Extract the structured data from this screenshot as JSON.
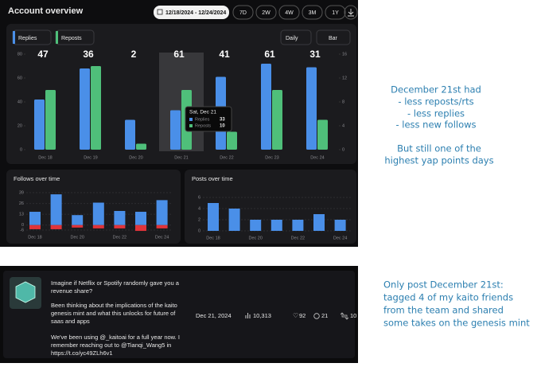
{
  "header": {
    "title": "Account overview",
    "date_range": "12/18/2024 - 12/24/2024",
    "periods": [
      "7D",
      "2W",
      "4W",
      "3M",
      "1Y"
    ]
  },
  "main_chart": {
    "type": "bar",
    "filters": [
      "Replies",
      "Reposts"
    ],
    "interval": "Daily",
    "chart_kind": "Bar",
    "categories": [
      "Dec 18",
      "Dec 19",
      "Dec 20",
      "Dec 21",
      "Dec 22",
      "Dec 23",
      "Dec 24"
    ],
    "series": [
      {
        "name": "Replies",
        "color": "#4a8fe8",
        "values": [
          42,
          68,
          25,
          33,
          61,
          72,
          69
        ]
      },
      {
        "name": "Reposts",
        "color": "#4fbf7a",
        "values": [
          10,
          14,
          1,
          10,
          3,
          10,
          5
        ],
        "axis": "y2"
      }
    ],
    "ylim": [
      0,
      80
    ],
    "yticks": [
      0,
      20,
      40,
      60,
      80
    ],
    "y2lim": [
      0,
      16
    ],
    "y2ticks": [
      0,
      4,
      8,
      12,
      16
    ],
    "tooltip": {
      "title": "Sat, Dec 21",
      "rows": [
        {
          "name": "Replies",
          "value": 33
        },
        {
          "name": "Reposts",
          "value": 10
        }
      ]
    },
    "yap_points": [
      47,
      36,
      2,
      61,
      41,
      61,
      31
    ]
  },
  "follows_chart": {
    "type": "bar",
    "title": "Follows over time",
    "categories": [
      "Dec 18",
      null,
      "Dec 20",
      null,
      "Dec 22",
      null,
      "Dec 24"
    ],
    "series": [
      {
        "color": "#4a8fe8",
        "values": [
          16,
          37,
          12,
          27,
          17,
          16,
          30
        ]
      },
      {
        "color": "#e0343a",
        "values": [
          -5,
          -5,
          -3,
          -4,
          -4,
          -7,
          -4
        ]
      }
    ],
    "ylim": [
      -6,
      39
    ],
    "yticks": [
      -6,
      0,
      13,
      26,
      39
    ]
  },
  "posts_chart": {
    "type": "bar",
    "title": "Posts over time",
    "categories": [
      "Dec 18",
      null,
      "Dec 20",
      null,
      "Dec 22",
      null,
      "Dec 24"
    ],
    "values": [
      5,
      4,
      2,
      2,
      2,
      3,
      2
    ],
    "color": "#4a8fe8",
    "ylim": [
      0,
      6
    ],
    "yticks": [
      0,
      2,
      4,
      6
    ]
  },
  "post": {
    "lines": [
      "Imagine if Netflix or Spotify randomly gave you a",
      "revenue share?",
      "Been thinking about the implications of the kaito",
      "genesis mint and what this unlocks for future of",
      "saas and apps",
      "We've been using @_kaitoai for a full year now. I",
      "remember reaching out to @Tianqi_Wang5 in",
      "https://t.co/yc49ZLh6v1"
    ],
    "date": "Dec 21, 2024",
    "views": "10,313",
    "likes": "92",
    "replies": "21",
    "reposts": "10"
  },
  "notes": {
    "first": [
      "December 21st had",
      "- less reposts/rts",
      "- less replies",
      "- less new follows",
      "But still one of the",
      "highest yap points days"
    ],
    "second": [
      "Only post December 21st:",
      "tagged 4 of my kaito friends",
      "from the team and shared",
      "some takes on the genesis mint"
    ]
  }
}
